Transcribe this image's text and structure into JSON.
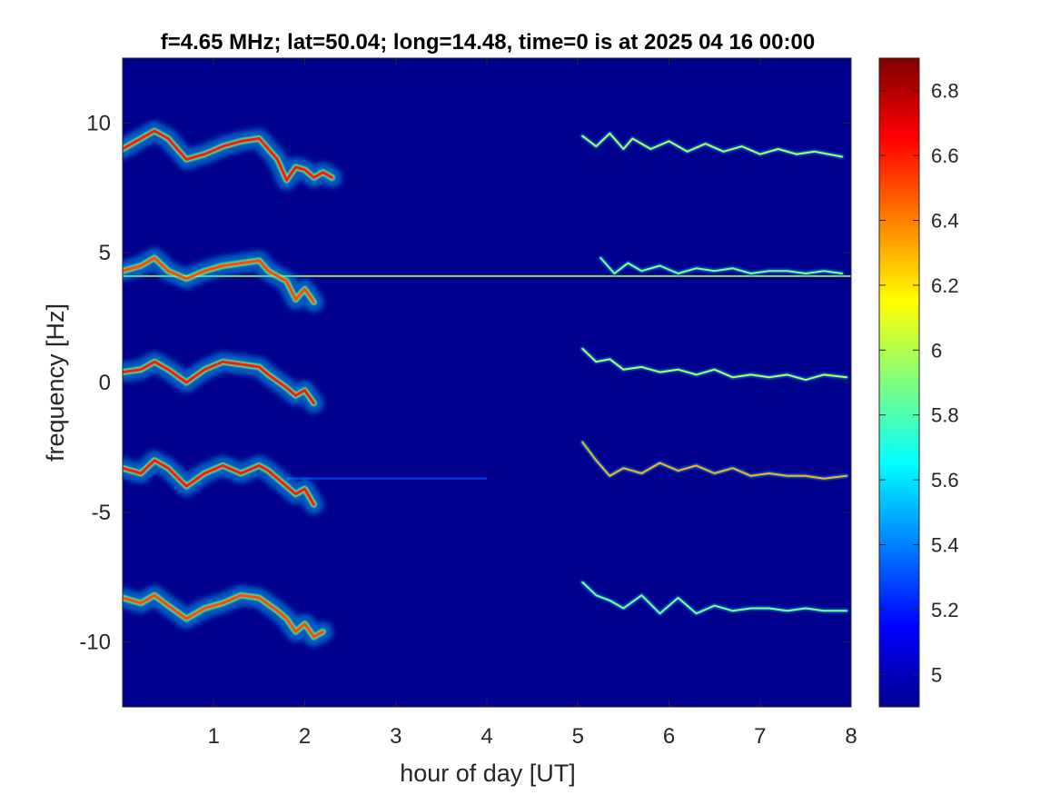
{
  "chart_data": {
    "type": "heatmap",
    "title": "f=4.65 MHz;  lat=50.04; long=14.48, time=0 is at 2025 04 16 00:00",
    "xlabel": "hour of day [UT]",
    "ylabel": "frequency [Hz]",
    "xlim": [
      0,
      8
    ],
    "ylim": [
      -12.5,
      12.5
    ],
    "xticks": [
      1,
      2,
      3,
      4,
      5,
      6,
      7,
      8
    ],
    "yticks": [
      10,
      5,
      0,
      -5,
      -10
    ],
    "colorbar": {
      "clim": [
        4.9,
        6.9
      ],
      "ticks": [
        "6.8",
        "6.6",
        "6.4",
        "6.2",
        "6",
        "5.8",
        "5.6",
        "5.4",
        "5.2",
        "5"
      ],
      "colormap": "jet"
    },
    "background_value": 4.95,
    "horizontal_lines": [
      {
        "y": 4.1,
        "x_start": 0.0,
        "x_end": 8.0,
        "value": 6.0
      },
      {
        "y": -3.7,
        "x_start": 1.8,
        "x_end": 4.0,
        "value": 5.3
      }
    ],
    "traces": [
      {
        "band_center": 9.2,
        "segments": [
          {
            "x": [
              0.0,
              0.1,
              0.2,
              0.35,
              0.5,
              0.7,
              0.9,
              1.1,
              1.3,
              1.5,
              1.7,
              1.8,
              1.9,
              2.0,
              2.1,
              2.2,
              2.3
            ],
            "y": [
              9.0,
              9.2,
              9.4,
              9.7,
              9.4,
              8.6,
              8.8,
              9.1,
              9.3,
              9.4,
              8.6,
              7.8,
              8.3,
              8.2,
              7.9,
              8.1,
              7.9
            ],
            "value": 6.6
          }
        ]
      },
      {
        "band_center": 4.4,
        "segments": [
          {
            "x": [
              0.0,
              0.2,
              0.35,
              0.5,
              0.7,
              0.9,
              1.1,
              1.3,
              1.5,
              1.6,
              1.8,
              1.9,
              2.0,
              2.1
            ],
            "y": [
              4.3,
              4.5,
              4.8,
              4.3,
              4.0,
              4.3,
              4.5,
              4.6,
              4.7,
              4.3,
              3.9,
              3.2,
              3.6,
              3.1
            ],
            "value": 6.5
          }
        ]
      },
      {
        "band_center": 0.5,
        "segments": [
          {
            "x": [
              0.0,
              0.2,
              0.35,
              0.5,
              0.7,
              0.9,
              1.1,
              1.3,
              1.5,
              1.6,
              1.8,
              1.9,
              2.0,
              2.1
            ],
            "y": [
              0.4,
              0.5,
              0.8,
              0.5,
              0.0,
              0.5,
              0.8,
              0.7,
              0.6,
              0.3,
              -0.2,
              -0.5,
              -0.3,
              -0.8
            ],
            "value": 6.6
          }
        ]
      },
      {
        "band_center": -3.4,
        "segments": [
          {
            "x": [
              0.0,
              0.2,
              0.35,
              0.5,
              0.7,
              0.9,
              1.1,
              1.3,
              1.5,
              1.6,
              1.8,
              1.9,
              2.0,
              2.1
            ],
            "y": [
              -3.3,
              -3.5,
              -3.0,
              -3.3,
              -4.0,
              -3.5,
              -3.2,
              -3.5,
              -3.2,
              -3.4,
              -4.0,
              -4.3,
              -4.1,
              -4.7
            ],
            "value": 6.6
          }
        ]
      },
      {
        "band_center": -8.3,
        "segments": [
          {
            "x": [
              0.0,
              0.2,
              0.35,
              0.5,
              0.7,
              0.9,
              1.1,
              1.3,
              1.5,
              1.7,
              1.8,
              1.9,
              2.0,
              2.1,
              2.2
            ],
            "y": [
              -8.3,
              -8.5,
              -8.2,
              -8.6,
              -9.1,
              -8.7,
              -8.5,
              -8.2,
              -8.3,
              -8.8,
              -9.1,
              -9.6,
              -9.3,
              -9.8,
              -9.6
            ],
            "value": 6.5
          }
        ]
      },
      {
        "band_center": 9.0,
        "segments": [
          {
            "x": [
              5.05,
              5.2,
              5.35,
              5.5,
              5.6,
              5.8,
              6.0,
              6.2,
              6.4,
              6.6,
              6.8,
              7.0,
              7.2,
              7.4,
              7.6,
              7.9
            ],
            "y": [
              9.5,
              9.1,
              9.6,
              9.0,
              9.4,
              9.0,
              9.3,
              8.9,
              9.2,
              8.9,
              9.1,
              8.8,
              9.0,
              8.8,
              8.9,
              8.7
            ],
            "value": 6.0
          }
        ]
      },
      {
        "band_center": 4.5,
        "segments": [
          {
            "x": [
              5.25,
              5.4,
              5.55,
              5.7,
              5.9,
              6.1,
              6.3,
              6.5,
              6.7,
              6.9,
              7.1,
              7.3,
              7.5,
              7.7,
              7.9
            ],
            "y": [
              4.8,
              4.2,
              4.6,
              4.3,
              4.5,
              4.2,
              4.4,
              4.3,
              4.4,
              4.2,
              4.3,
              4.3,
              4.2,
              4.3,
              4.2
            ],
            "value": 5.9
          }
        ]
      },
      {
        "band_center": 0.6,
        "segments": [
          {
            "x": [
              5.05,
              5.2,
              5.35,
              5.5,
              5.7,
              5.9,
              6.1,
              6.3,
              6.5,
              6.7,
              6.9,
              7.1,
              7.3,
              7.5,
              7.7,
              7.95
            ],
            "y": [
              1.3,
              0.8,
              0.9,
              0.5,
              0.6,
              0.4,
              0.5,
              0.3,
              0.5,
              0.2,
              0.3,
              0.2,
              0.3,
              0.1,
              0.3,
              0.2
            ],
            "value": 6.0
          }
        ]
      },
      {
        "band_center": -3.3,
        "segments": [
          {
            "x": [
              5.05,
              5.2,
              5.35,
              5.5,
              5.7,
              5.9,
              6.1,
              6.3,
              6.5,
              6.7,
              6.9,
              7.1,
              7.3,
              7.5,
              7.7,
              7.95
            ],
            "y": [
              -2.3,
              -3.0,
              -3.6,
              -3.3,
              -3.5,
              -3.1,
              -3.4,
              -3.2,
              -3.5,
              -3.3,
              -3.6,
              -3.5,
              -3.6,
              -3.6,
              -3.7,
              -3.6
            ],
            "value": 6.3
          }
        ]
      },
      {
        "band_center": -8.4,
        "segments": [
          {
            "x": [
              5.05,
              5.2,
              5.35,
              5.5,
              5.7,
              5.9,
              6.1,
              6.3,
              6.5,
              6.7,
              6.9,
              7.1,
              7.3,
              7.5,
              7.7,
              7.95
            ],
            "y": [
              -7.7,
              -8.2,
              -8.4,
              -8.7,
              -8.2,
              -8.9,
              -8.3,
              -8.9,
              -8.6,
              -8.8,
              -8.7,
              -8.7,
              -8.8,
              -8.7,
              -8.8,
              -8.8
            ],
            "value": 5.9
          }
        ]
      }
    ]
  }
}
